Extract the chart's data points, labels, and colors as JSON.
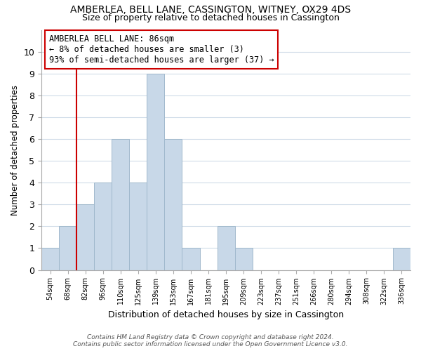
{
  "title": "AMBERLEA, BELL LANE, CASSINGTON, WITNEY, OX29 4DS",
  "subtitle": "Size of property relative to detached houses in Cassington",
  "xlabel": "Distribution of detached houses by size in Cassington",
  "ylabel": "Number of detached properties",
  "bar_labels": [
    "54sqm",
    "68sqm",
    "82sqm",
    "96sqm",
    "110sqm",
    "125sqm",
    "139sqm",
    "153sqm",
    "167sqm",
    "181sqm",
    "195sqm",
    "209sqm",
    "223sqm",
    "237sqm",
    "251sqm",
    "266sqm",
    "280sqm",
    "294sqm",
    "308sqm",
    "322sqm",
    "336sqm"
  ],
  "bar_values": [
    1,
    2,
    3,
    4,
    6,
    4,
    9,
    6,
    1,
    0,
    2,
    1,
    0,
    0,
    0,
    0,
    0,
    0,
    0,
    0,
    1
  ],
  "bar_color": "#c8d8e8",
  "bar_edge_color": "#a0b8cc",
  "property_label": "AMBERLEA BELL LANE: 86sqm",
  "pct_smaller": "8%",
  "n_smaller": 3,
  "pct_larger_semi": "93%",
  "n_larger_semi": 37,
  "vline_x_index": 2.0,
  "vline_color": "#cc0000",
  "annotation_box_color": "#ffffff",
  "annotation_box_edge_color": "#cc0000",
  "ylim": [
    0,
    11
  ],
  "yticks": [
    0,
    1,
    2,
    3,
    4,
    5,
    6,
    7,
    8,
    9,
    10,
    11
  ],
  "footer_line1": "Contains HM Land Registry data © Crown copyright and database right 2024.",
  "footer_line2": "Contains public sector information licensed under the Open Government Licence v3.0.",
  "background_color": "#ffffff",
  "grid_color": "#d0dce8"
}
